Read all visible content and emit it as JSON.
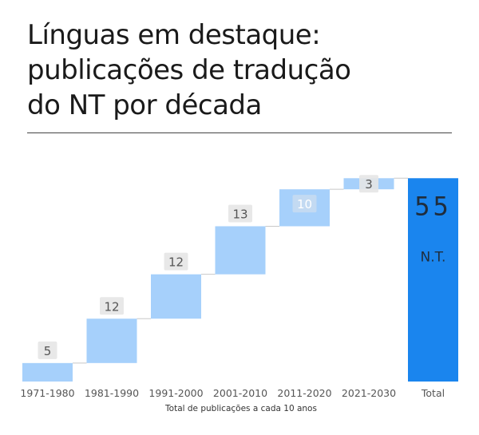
{
  "title_lines": [
    "Línguas em destaque:",
    "publicações de tradução",
    "do NT por década"
  ],
  "colors": {
    "increase": "#a6d0fb",
    "total": "#1a85ee",
    "connector": "#c8c8c8",
    "label_bg": "#e6e6e6",
    "label_text": "#555555",
    "total_text": "#1f2d3d",
    "axis_text": "#555555"
  },
  "chart_data": {
    "type": "waterfall",
    "categories": [
      "1971-1980",
      "1981-1990",
      "1991-2000",
      "2001-2010",
      "2011-2020",
      "2021-2030",
      "Total"
    ],
    "values": [
      5,
      12,
      12,
      13,
      10,
      3,
      55
    ],
    "total_index": 6,
    "total_value_label": "55",
    "total_sub_label": "N.T.",
    "xlabel": "Total de publicações a cada 10 anos",
    "ylabel": "",
    "ylim": [
      0,
      57
    ],
    "grid": false
  }
}
